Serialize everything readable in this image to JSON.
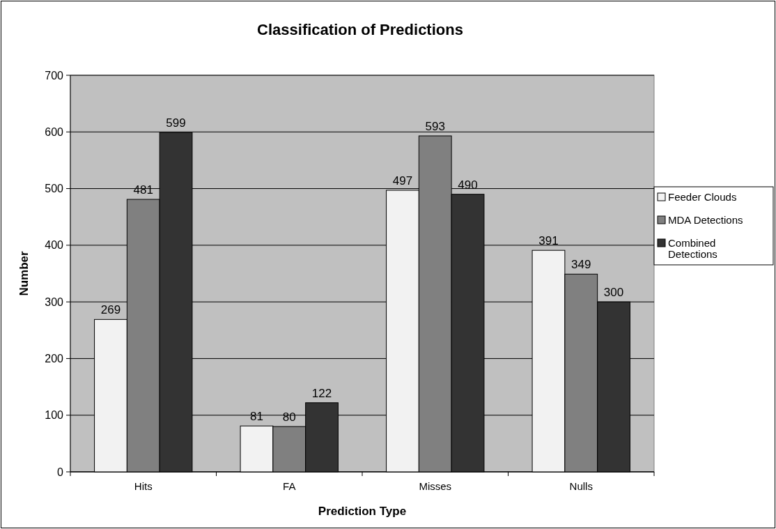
{
  "chart_data": {
    "type": "bar",
    "title": "Classification of Predictions",
    "xlabel": "Prediction Type",
    "ylabel": "Number",
    "categories": [
      "Hits",
      "FA",
      "Misses",
      "Nulls"
    ],
    "series": [
      {
        "name": "Feeder Clouds",
        "color": "#f2f2f2",
        "values": [
          269,
          81,
          497,
          391
        ]
      },
      {
        "name": "MDA Detections",
        "color": "#808080",
        "values": [
          481,
          80,
          593,
          349
        ]
      },
      {
        "name": "Combined Detections",
        "color": "#333333",
        "values": [
          599,
          122,
          490,
          300
        ]
      }
    ],
    "ylim": [
      0,
      700
    ],
    "yticks": [
      0,
      100,
      200,
      300,
      400,
      500,
      600,
      700
    ],
    "grid": "y",
    "legend": "right",
    "data_labels": true
  }
}
